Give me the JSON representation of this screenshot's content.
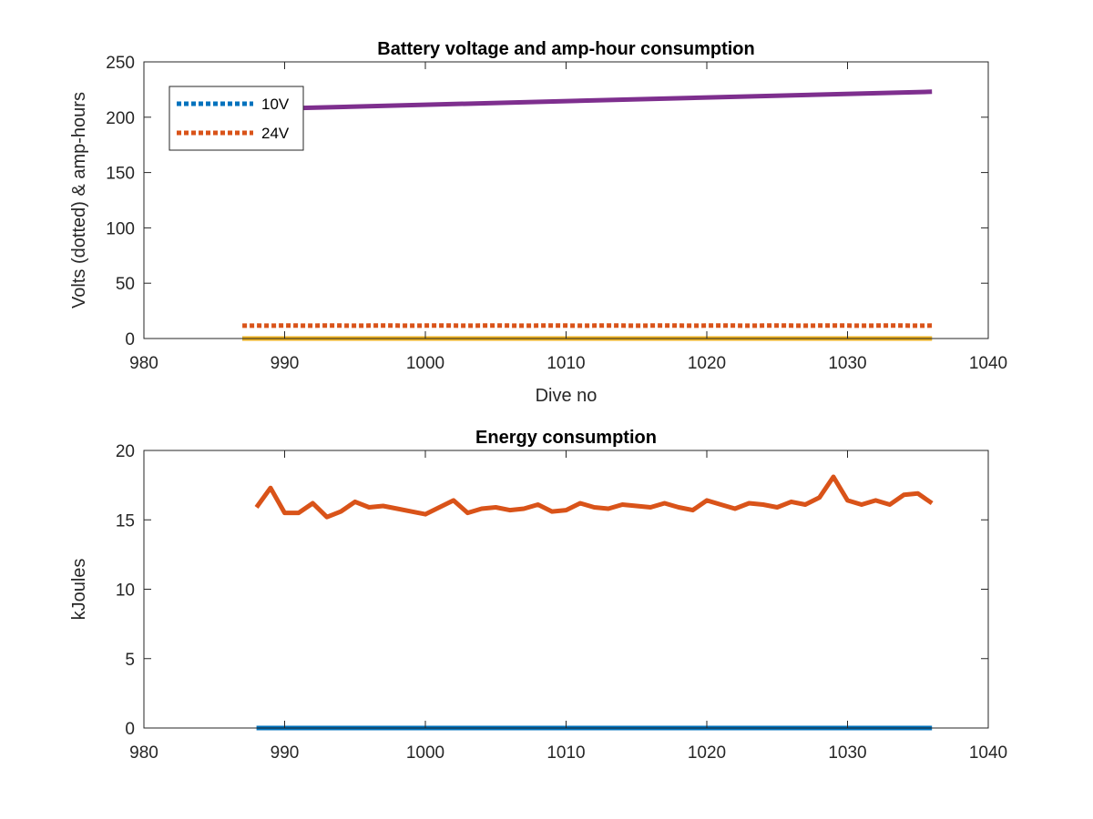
{
  "chart_data": [
    {
      "type": "line",
      "title": "Battery voltage and amp-hour consumption",
      "xlabel": "Dive no",
      "ylabel": "Volts (dotted) & amp-hours",
      "xlim": [
        980,
        1040
      ],
      "ylim": [
        0,
        250
      ],
      "xticks": [
        "980",
        "990",
        "1000",
        "1010",
        "1020",
        "1030",
        "1040"
      ],
      "yticks": [
        "0",
        "50",
        "100",
        "150",
        "200",
        "250"
      ],
      "grid": false,
      "legend_position": "top-left",
      "series": [
        {
          "name": "10V",
          "style": "dotted",
          "color": "#0072BD",
          "x": [
            987,
            1036
          ],
          "y": [
            0,
            0
          ]
        },
        {
          "name": "24V",
          "style": "dotted",
          "color": "#D95319",
          "x": [
            987,
            988,
            989,
            990,
            991,
            992,
            993,
            994,
            995,
            996,
            997,
            998,
            999,
            1000,
            1001,
            1002,
            1003,
            1004,
            1005,
            1006,
            1007,
            1008,
            1009,
            1010,
            1011,
            1012,
            1013,
            1014,
            1015,
            1016,
            1017,
            1018,
            1019,
            1020,
            1021,
            1022,
            1023,
            1024,
            1025,
            1026,
            1027,
            1028,
            1029,
            1030,
            1031,
            1032,
            1033,
            1034,
            1035,
            1036
          ],
          "y": [
            11.6,
            11.7,
            11.6,
            11.8,
            11.7,
            11.6,
            11.8,
            11.7,
            11.6,
            11.7,
            11.8,
            11.7,
            11.6,
            11.7,
            11.8,
            11.7,
            11.6,
            11.7,
            11.8,
            11.7,
            11.6,
            11.7,
            11.8,
            11.7,
            11.6,
            11.7,
            11.8,
            11.7,
            11.6,
            11.7,
            11.8,
            11.7,
            11.6,
            11.7,
            11.8,
            11.7,
            11.6,
            11.7,
            11.8,
            11.7,
            11.6,
            11.7,
            11.8,
            11.7,
            11.6,
            11.7,
            11.8,
            11.7,
            11.6,
            11.7
          ]
        },
        {
          "style": "solid",
          "color": "#EDB120",
          "x": [
            987,
            1036
          ],
          "y": [
            0,
            0
          ]
        },
        {
          "style": "solid",
          "color": "#7E2F8E",
          "x": [
            987,
            1036
          ],
          "y": [
            207,
            223
          ]
        }
      ]
    },
    {
      "type": "line",
      "title": "Energy consumption",
      "xlabel": "",
      "ylabel": "kJoules",
      "xlim": [
        980,
        1040
      ],
      "ylim": [
        0,
        20
      ],
      "xticks": [
        "980",
        "990",
        "1000",
        "1010",
        "1020",
        "1030",
        "1040"
      ],
      "yticks": [
        "0",
        "5",
        "10",
        "15",
        "20"
      ],
      "grid": false,
      "series": [
        {
          "style": "solid",
          "color": "#0072BD",
          "x": [
            988,
            1036
          ],
          "y": [
            0,
            0
          ]
        },
        {
          "style": "solid",
          "color": "#D95319",
          "x": [
            988,
            989,
            990,
            991,
            992,
            993,
            994,
            995,
            996,
            997,
            998,
            999,
            1000,
            1001,
            1002,
            1003,
            1004,
            1005,
            1006,
            1007,
            1008,
            1009,
            1010,
            1011,
            1012,
            1013,
            1014,
            1015,
            1016,
            1017,
            1018,
            1019,
            1020,
            1021,
            1022,
            1023,
            1024,
            1025,
            1026,
            1027,
            1028,
            1029,
            1030,
            1031,
            1032,
            1033,
            1034,
            1035,
            1036
          ],
          "y": [
            15.9,
            17.3,
            15.5,
            15.5,
            16.2,
            15.2,
            15.6,
            16.3,
            15.9,
            16.0,
            15.8,
            15.6,
            15.4,
            15.9,
            16.4,
            15.5,
            15.8,
            15.9,
            15.7,
            15.8,
            16.1,
            15.6,
            15.7,
            16.2,
            15.9,
            15.8,
            16.1,
            16.0,
            15.9,
            16.2,
            15.9,
            15.7,
            16.4,
            16.1,
            15.8,
            16.2,
            16.1,
            15.9,
            16.3,
            16.1,
            16.6,
            18.1,
            16.4,
            16.1,
            16.4,
            16.1,
            16.8,
            16.9,
            16.2
          ]
        }
      ]
    }
  ]
}
